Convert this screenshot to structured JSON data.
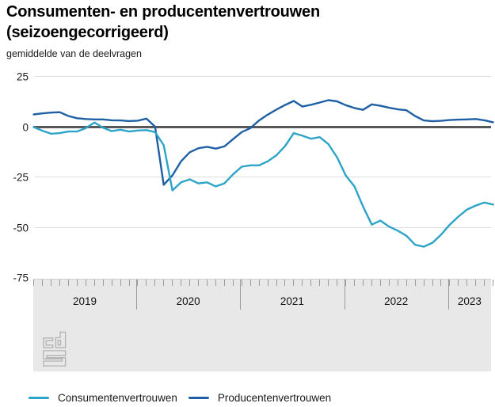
{
  "header": {
    "title_line1": "Consumenten- en producentenvertrouwen",
    "title_line2": "(seizoengecorrigeerd)",
    "subtitle": "gemiddelde van de deelvragen"
  },
  "chart_data": {
    "type": "line",
    "title": "Consumenten- en producentenvertrouwen (seizoengecorrigeerd)",
    "subtitle": "gemiddelde van de deelvragen",
    "x": [
      "2019-01",
      "2019-02",
      "2019-03",
      "2019-04",
      "2019-05",
      "2019-06",
      "2019-07",
      "2019-08",
      "2019-09",
      "2019-10",
      "2019-11",
      "2019-12",
      "2020-01",
      "2020-02",
      "2020-03",
      "2020-04",
      "2020-05",
      "2020-06",
      "2020-07",
      "2020-08",
      "2020-09",
      "2020-10",
      "2020-11",
      "2020-12",
      "2021-01",
      "2021-02",
      "2021-03",
      "2021-04",
      "2021-05",
      "2021-06",
      "2021-07",
      "2021-08",
      "2021-09",
      "2021-10",
      "2021-11",
      "2021-12",
      "2022-01",
      "2022-02",
      "2022-03",
      "2022-04",
      "2022-05",
      "2022-06",
      "2022-07",
      "2022-08",
      "2022-09",
      "2022-10",
      "2022-11",
      "2022-12",
      "2023-01",
      "2023-02",
      "2023-03",
      "2023-04",
      "2023-05",
      "2023-06"
    ],
    "series": [
      {
        "name": "Consumentenvertrouwen",
        "color": "#2ca4c7",
        "values": [
          0,
          -1.8,
          -3.3,
          -3,
          -2.2,
          -2.2,
          -0.5,
          2.3,
          -0.3,
          -2,
          -1.3,
          -2.2,
          -1.7,
          -1.5,
          -2.5,
          -9,
          -31.5,
          -27.5,
          -26,
          -28,
          -27.5,
          -29.5,
          -28,
          -23.5,
          -19.7,
          -19,
          -19,
          -17,
          -14,
          -9.5,
          -3,
          -4.3,
          -5.8,
          -5,
          -8.5,
          -15,
          -24,
          -29.5,
          -39.5,
          -48.5,
          -46.5,
          -49.5,
          -51.5,
          -54,
          -58.5,
          -59.5,
          -57.5,
          -53.5,
          -48.5,
          -44.5,
          -41,
          -39,
          -37.5,
          -38.5
        ]
      },
      {
        "name": "Producentenvertrouwen",
        "color": "#1f60a5",
        "values": [
          6.3,
          6.8,
          7.2,
          7.4,
          5.5,
          4.4,
          4,
          3.8,
          3.8,
          3.4,
          3.3,
          3,
          3.2,
          4.2,
          0.2,
          -28.7,
          -24,
          -17,
          -12.5,
          -10.5,
          -9.8,
          -10.7,
          -9.6,
          -6,
          -2.5,
          -0.5,
          3.3,
          6.2,
          8.7,
          11,
          13,
          10.2,
          11.1,
          12.2,
          13.4,
          12.8,
          10.9,
          9.5,
          8.6,
          11.3,
          10.6,
          9.6,
          8.8,
          8.4,
          5.5,
          3.3,
          2.9,
          3.1,
          3.5,
          3.7,
          3.8,
          4,
          3.4,
          2.4
        ]
      }
    ],
    "ylim": [
      -75,
      25
    ],
    "yticks": [
      25,
      0,
      -25,
      -50,
      -75
    ],
    "year_labels": [
      "2019",
      "2020",
      "2021",
      "2022",
      "2023"
    ],
    "grid": "horizontal-light",
    "zero_line": true,
    "legend_position": "bottom"
  },
  "colors": {
    "zero_line": "#58585a",
    "gridline": "#dcdcdc",
    "axis_band": "#e8e8e8",
    "tick": "#9b9b9b",
    "logo": "#b2b2b2"
  },
  "logo": {
    "name": "cbs-logo"
  }
}
